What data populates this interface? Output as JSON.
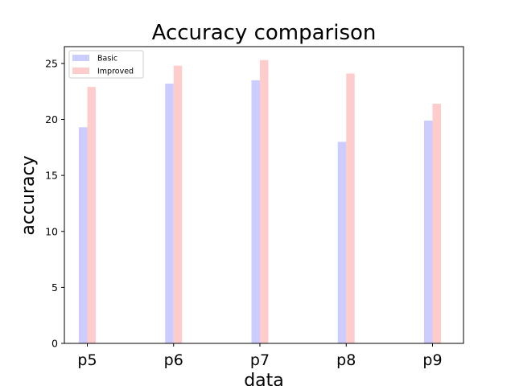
{
  "chart_data": {
    "type": "bar",
    "title": "Accuracy comparison",
    "xlabel": "data",
    "ylabel": "accuracy",
    "categories": [
      "p5",
      "p6",
      "p7",
      "p8",
      "p9"
    ],
    "series": [
      {
        "name": "Basic",
        "values": [
          19.3,
          23.2,
          23.5,
          18.0,
          19.9
        ],
        "color": "#ccccff"
      },
      {
        "name": "Improved",
        "values": [
          22.9,
          24.8,
          25.3,
          24.1,
          21.4
        ],
        "color": "#ffcccc"
      }
    ],
    "ylim": [
      0,
      26.5
    ],
    "yticks": [
      "0",
      "5",
      "10",
      "15",
      "20",
      "25"
    ],
    "legend": "top-left",
    "grid": false
  }
}
